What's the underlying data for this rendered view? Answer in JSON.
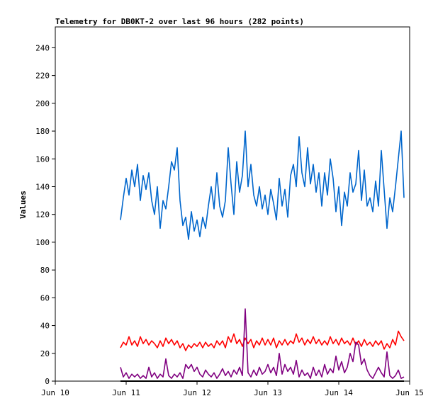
{
  "chart_data": {
    "type": "line",
    "title": "Telemetry for DB0KT-2 over last 96 hours (282 points)",
    "xlabel": "",
    "ylabel": "Values",
    "xlim": [
      "Jun 10",
      "Jun 15"
    ],
    "ylim": [
      0,
      255
    ],
    "x_ticks": [
      "Jun 10",
      "Jun 11",
      "Jun 12",
      "Jun 13",
      "Jun 14",
      "Jun 15"
    ],
    "y_ticks": [
      0,
      20,
      40,
      60,
      80,
      100,
      120,
      140,
      160,
      180,
      200,
      220,
      240
    ],
    "grid": false,
    "legend": false,
    "x_unit": "days from Jun 10",
    "series": [
      {
        "color": "#0066cc",
        "points": [
          [
            0.92,
            116
          ],
          [
            0.96,
            132
          ],
          [
            1.0,
            146
          ],
          [
            1.04,
            134
          ],
          [
            1.08,
            152
          ],
          [
            1.12,
            140
          ],
          [
            1.16,
            156
          ],
          [
            1.2,
            130
          ],
          [
            1.24,
            148
          ],
          [
            1.28,
            138
          ],
          [
            1.32,
            150
          ],
          [
            1.36,
            130
          ],
          [
            1.4,
            120
          ],
          [
            1.44,
            140
          ],
          [
            1.48,
            110
          ],
          [
            1.52,
            130
          ],
          [
            1.56,
            124
          ],
          [
            1.6,
            140
          ],
          [
            1.64,
            158
          ],
          [
            1.68,
            152
          ],
          [
            1.72,
            168
          ],
          [
            1.76,
            130
          ],
          [
            1.8,
            112
          ],
          [
            1.84,
            118
          ],
          [
            1.88,
            102
          ],
          [
            1.92,
            122
          ],
          [
            1.96,
            108
          ],
          [
            2.0,
            116
          ],
          [
            2.04,
            104
          ],
          [
            2.08,
            118
          ],
          [
            2.12,
            110
          ],
          [
            2.16,
            126
          ],
          [
            2.2,
            140
          ],
          [
            2.24,
            124
          ],
          [
            2.28,
            150
          ],
          [
            2.32,
            126
          ],
          [
            2.36,
            118
          ],
          [
            2.4,
            130
          ],
          [
            2.44,
            168
          ],
          [
            2.48,
            142
          ],
          [
            2.52,
            120
          ],
          [
            2.56,
            158
          ],
          [
            2.6,
            136
          ],
          [
            2.64,
            148
          ],
          [
            2.68,
            180
          ],
          [
            2.72,
            140
          ],
          [
            2.76,
            156
          ],
          [
            2.8,
            134
          ],
          [
            2.84,
            126
          ],
          [
            2.88,
            140
          ],
          [
            2.92,
            124
          ],
          [
            2.96,
            134
          ],
          [
            3.0,
            120
          ],
          [
            3.04,
            138
          ],
          [
            3.08,
            128
          ],
          [
            3.12,
            116
          ],
          [
            3.16,
            146
          ],
          [
            3.2,
            126
          ],
          [
            3.24,
            138
          ],
          [
            3.28,
            118
          ],
          [
            3.32,
            148
          ],
          [
            3.36,
            156
          ],
          [
            3.4,
            140
          ],
          [
            3.44,
            176
          ],
          [
            3.48,
            150
          ],
          [
            3.52,
            140
          ],
          [
            3.56,
            168
          ],
          [
            3.6,
            142
          ],
          [
            3.64,
            156
          ],
          [
            3.68,
            136
          ],
          [
            3.72,
            150
          ],
          [
            3.76,
            126
          ],
          [
            3.8,
            150
          ],
          [
            3.84,
            134
          ],
          [
            3.88,
            160
          ],
          [
            3.92,
            146
          ],
          [
            3.96,
            122
          ],
          [
            4.0,
            140
          ],
          [
            4.04,
            112
          ],
          [
            4.08,
            136
          ],
          [
            4.12,
            126
          ],
          [
            4.16,
            150
          ],
          [
            4.2,
            136
          ],
          [
            4.24,
            142
          ],
          [
            4.28,
            166
          ],
          [
            4.32,
            130
          ],
          [
            4.36,
            152
          ],
          [
            4.4,
            126
          ],
          [
            4.44,
            132
          ],
          [
            4.48,
            122
          ],
          [
            4.52,
            144
          ],
          [
            4.56,
            126
          ],
          [
            4.6,
            166
          ],
          [
            4.64,
            138
          ],
          [
            4.68,
            110
          ],
          [
            4.72,
            132
          ],
          [
            4.76,
            122
          ],
          [
            4.8,
            140
          ],
          [
            4.84,
            160
          ],
          [
            4.88,
            180
          ],
          [
            4.92,
            132
          ]
        ]
      },
      {
        "color": "#ff0000",
        "points": [
          [
            0.92,
            24
          ],
          [
            0.96,
            28
          ],
          [
            1.0,
            26
          ],
          [
            1.04,
            32
          ],
          [
            1.08,
            26
          ],
          [
            1.12,
            29
          ],
          [
            1.16,
            25
          ],
          [
            1.2,
            32
          ],
          [
            1.24,
            27
          ],
          [
            1.28,
            30
          ],
          [
            1.32,
            26
          ],
          [
            1.36,
            29
          ],
          [
            1.4,
            27
          ],
          [
            1.44,
            24
          ],
          [
            1.48,
            29
          ],
          [
            1.52,
            25
          ],
          [
            1.56,
            31
          ],
          [
            1.6,
            27
          ],
          [
            1.64,
            30
          ],
          [
            1.68,
            26
          ],
          [
            1.72,
            29
          ],
          [
            1.76,
            24
          ],
          [
            1.8,
            27
          ],
          [
            1.84,
            22
          ],
          [
            1.88,
            26
          ],
          [
            1.92,
            24
          ],
          [
            1.96,
            27
          ],
          [
            2.0,
            25
          ],
          [
            2.04,
            28
          ],
          [
            2.08,
            24
          ],
          [
            2.12,
            28
          ],
          [
            2.16,
            25
          ],
          [
            2.2,
            27
          ],
          [
            2.24,
            24
          ],
          [
            2.28,
            29
          ],
          [
            2.32,
            26
          ],
          [
            2.36,
            29
          ],
          [
            2.4,
            24
          ],
          [
            2.44,
            32
          ],
          [
            2.48,
            28
          ],
          [
            2.52,
            34
          ],
          [
            2.56,
            27
          ],
          [
            2.6,
            30
          ],
          [
            2.64,
            25
          ],
          [
            2.68,
            31
          ],
          [
            2.72,
            27
          ],
          [
            2.76,
            30
          ],
          [
            2.8,
            24
          ],
          [
            2.84,
            29
          ],
          [
            2.88,
            26
          ],
          [
            2.92,
            31
          ],
          [
            2.96,
            26
          ],
          [
            3.0,
            30
          ],
          [
            3.04,
            26
          ],
          [
            3.08,
            31
          ],
          [
            3.12,
            24
          ],
          [
            3.16,
            29
          ],
          [
            3.2,
            26
          ],
          [
            3.24,
            30
          ],
          [
            3.28,
            26
          ],
          [
            3.32,
            29
          ],
          [
            3.36,
            27
          ],
          [
            3.4,
            34
          ],
          [
            3.44,
            28
          ],
          [
            3.48,
            31
          ],
          [
            3.52,
            26
          ],
          [
            3.56,
            30
          ],
          [
            3.6,
            27
          ],
          [
            3.64,
            32
          ],
          [
            3.68,
            27
          ],
          [
            3.72,
            30
          ],
          [
            3.76,
            26
          ],
          [
            3.8,
            29
          ],
          [
            3.84,
            26
          ],
          [
            3.88,
            32
          ],
          [
            3.92,
            27
          ],
          [
            3.96,
            30
          ],
          [
            4.0,
            26
          ],
          [
            4.04,
            31
          ],
          [
            4.08,
            27
          ],
          [
            4.12,
            29
          ],
          [
            4.16,
            26
          ],
          [
            4.2,
            31
          ],
          [
            4.24,
            26
          ],
          [
            4.28,
            29
          ],
          [
            4.32,
            25
          ],
          [
            4.36,
            30
          ],
          [
            4.4,
            26
          ],
          [
            4.44,
            28
          ],
          [
            4.48,
            25
          ],
          [
            4.52,
            29
          ],
          [
            4.56,
            26
          ],
          [
            4.6,
            29
          ],
          [
            4.64,
            23
          ],
          [
            4.68,
            27
          ],
          [
            4.72,
            24
          ],
          [
            4.76,
            30
          ],
          [
            4.8,
            26
          ],
          [
            4.84,
            36
          ],
          [
            4.88,
            32
          ],
          [
            4.92,
            29
          ]
        ]
      },
      {
        "color": "#800080",
        "points": [
          [
            0.92,
            10
          ],
          [
            0.96,
            3
          ],
          [
            1.0,
            6
          ],
          [
            1.04,
            2
          ],
          [
            1.08,
            5
          ],
          [
            1.12,
            3
          ],
          [
            1.16,
            5
          ],
          [
            1.2,
            2
          ],
          [
            1.24,
            4
          ],
          [
            1.28,
            2
          ],
          [
            1.32,
            10
          ],
          [
            1.36,
            3
          ],
          [
            1.4,
            6
          ],
          [
            1.44,
            2
          ],
          [
            1.48,
            5
          ],
          [
            1.52,
            3
          ],
          [
            1.56,
            16
          ],
          [
            1.6,
            4
          ],
          [
            1.64,
            2
          ],
          [
            1.68,
            5
          ],
          [
            1.72,
            3
          ],
          [
            1.76,
            6
          ],
          [
            1.8,
            2
          ],
          [
            1.84,
            12
          ],
          [
            1.88,
            9
          ],
          [
            1.92,
            12
          ],
          [
            1.96,
            7
          ],
          [
            2.0,
            10
          ],
          [
            2.04,
            5
          ],
          [
            2.08,
            3
          ],
          [
            2.12,
            8
          ],
          [
            2.16,
            5
          ],
          [
            2.2,
            3
          ],
          [
            2.24,
            6
          ],
          [
            2.28,
            2
          ],
          [
            2.32,
            5
          ],
          [
            2.36,
            9
          ],
          [
            2.4,
            4
          ],
          [
            2.44,
            7
          ],
          [
            2.48,
            3
          ],
          [
            2.52,
            8
          ],
          [
            2.56,
            5
          ],
          [
            2.6,
            10
          ],
          [
            2.64,
            4
          ],
          [
            2.68,
            52
          ],
          [
            2.72,
            6
          ],
          [
            2.76,
            3
          ],
          [
            2.8,
            8
          ],
          [
            2.84,
            4
          ],
          [
            2.88,
            10
          ],
          [
            2.92,
            5
          ],
          [
            2.96,
            7
          ],
          [
            3.0,
            12
          ],
          [
            3.04,
            6
          ],
          [
            3.08,
            10
          ],
          [
            3.12,
            4
          ],
          [
            3.16,
            20
          ],
          [
            3.2,
            5
          ],
          [
            3.24,
            12
          ],
          [
            3.28,
            7
          ],
          [
            3.32,
            10
          ],
          [
            3.36,
            5
          ],
          [
            3.4,
            15
          ],
          [
            3.44,
            3
          ],
          [
            3.48,
            8
          ],
          [
            3.52,
            4
          ],
          [
            3.56,
            6
          ],
          [
            3.6,
            2
          ],
          [
            3.64,
            10
          ],
          [
            3.68,
            4
          ],
          [
            3.72,
            8
          ],
          [
            3.76,
            3
          ],
          [
            3.8,
            12
          ],
          [
            3.84,
            5
          ],
          [
            3.88,
            9
          ],
          [
            3.92,
            6
          ],
          [
            3.96,
            18
          ],
          [
            4.0,
            8
          ],
          [
            4.04,
            14
          ],
          [
            4.08,
            6
          ],
          [
            4.12,
            10
          ],
          [
            4.16,
            20
          ],
          [
            4.2,
            14
          ],
          [
            4.24,
            28
          ],
          [
            4.28,
            26
          ],
          [
            4.32,
            12
          ],
          [
            4.36,
            16
          ],
          [
            4.4,
            8
          ],
          [
            4.44,
            4
          ],
          [
            4.48,
            2
          ],
          [
            4.52,
            6
          ],
          [
            4.56,
            10
          ],
          [
            4.6,
            6
          ],
          [
            4.64,
            3
          ],
          [
            4.68,
            21
          ],
          [
            4.72,
            4
          ],
          [
            4.76,
            2
          ],
          [
            4.8,
            4
          ],
          [
            4.84,
            8
          ],
          [
            4.88,
            2
          ],
          [
            4.92,
            3
          ]
        ]
      },
      {
        "color": "#000000",
        "points": [
          [
            0.92,
            0
          ],
          [
            1.5,
            0
          ],
          [
            2.0,
            0
          ],
          [
            2.5,
            0
          ],
          [
            3.0,
            0
          ],
          [
            3.5,
            0
          ],
          [
            4.0,
            0
          ],
          [
            4.5,
            0
          ],
          [
            4.92,
            0
          ]
        ]
      }
    ]
  }
}
